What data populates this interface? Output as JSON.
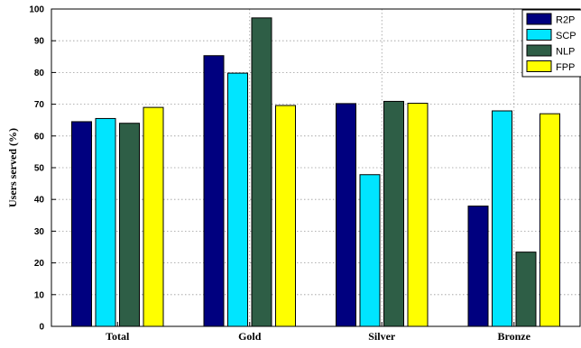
{
  "chart_data": {
    "type": "bar",
    "categories": [
      "Total",
      "Gold",
      "Silver",
      "Bronze"
    ],
    "series": [
      {
        "name": "R2P",
        "color": "#00007f",
        "values": [
          64.5,
          85.3,
          70.2,
          37.9
        ]
      },
      {
        "name": "SCP",
        "color": "#00e5ff",
        "values": [
          65.5,
          79.8,
          47.8,
          67.9
        ]
      },
      {
        "name": "NLP",
        "color": "#2e5e46",
        "values": [
          64.0,
          97.2,
          70.9,
          23.4
        ]
      },
      {
        "name": "FPP",
        "color": "#ffff00",
        "values": [
          69.0,
          69.6,
          70.3,
          67.0
        ]
      }
    ],
    "title": "",
    "xlabel": "",
    "ylabel": "Users served (%)",
    "ylim": [
      0,
      100
    ],
    "yticks": [
      0,
      10,
      20,
      30,
      40,
      50,
      60,
      70,
      80,
      90,
      100
    ],
    "grid": true,
    "legend_position": "top-right"
  }
}
